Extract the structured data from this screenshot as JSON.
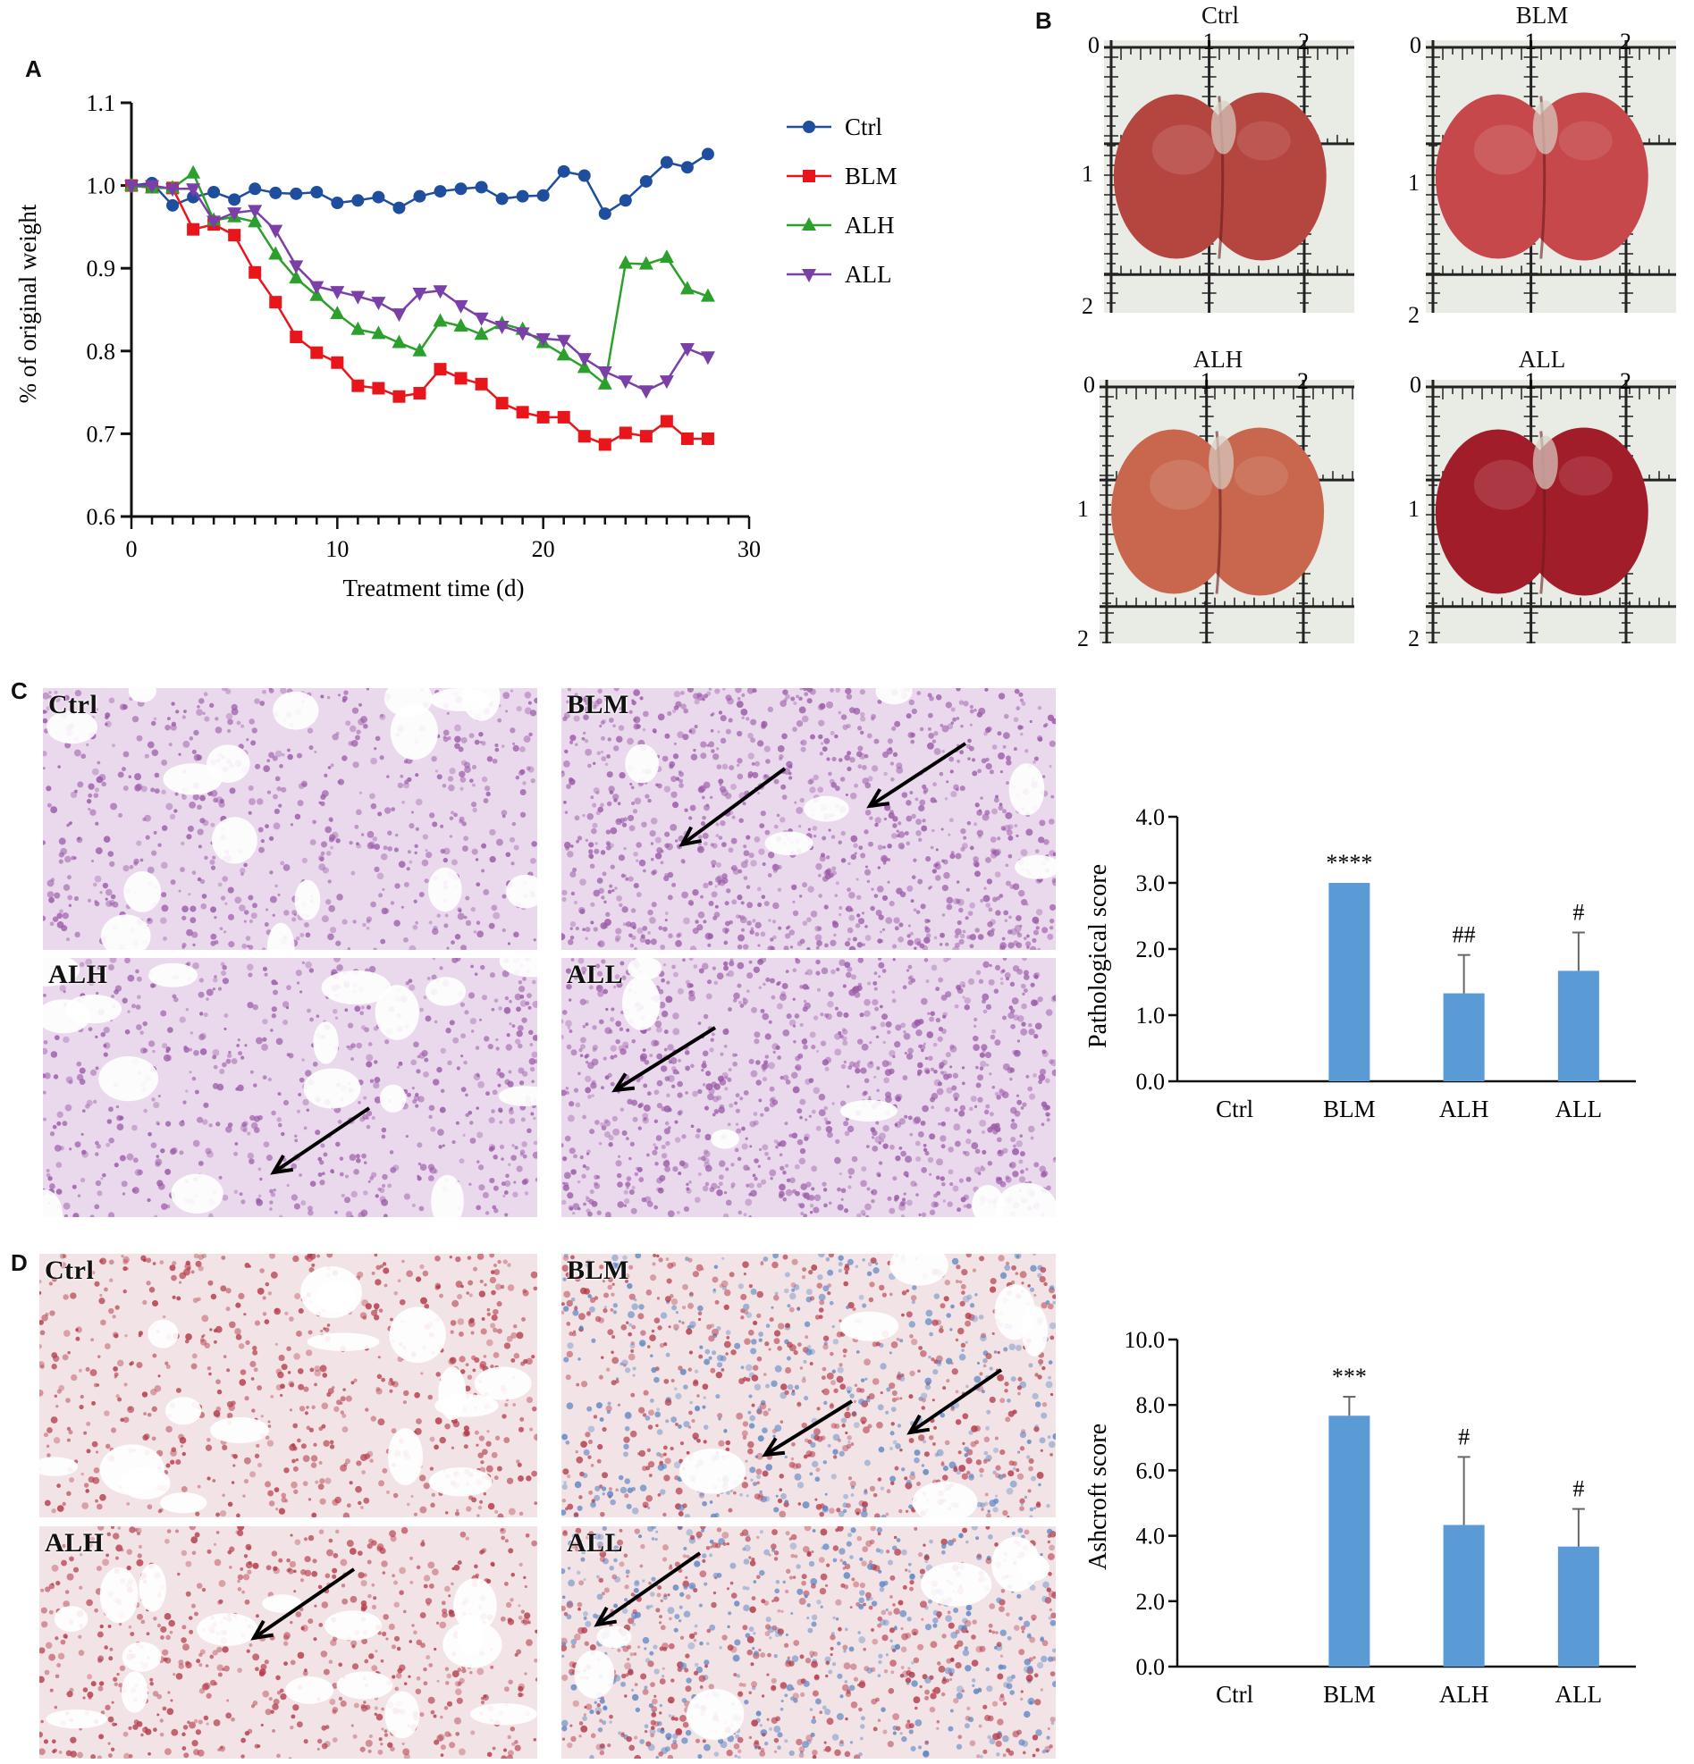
{
  "panels": {
    "a": "A",
    "b": "B",
    "c": "C",
    "d": "D"
  },
  "chart_data": [
    {
      "type": "line",
      "xlabel": "Treatment time (d)",
      "ylabel": "% of original weight",
      "xlim": [
        0,
        30
      ],
      "ylim": [
        0.6,
        1.1
      ],
      "xticks": [
        "0",
        "10",
        "20",
        "30"
      ],
      "yticks": [
        "0.6",
        "0.7",
        "0.8",
        "0.9",
        "1.0",
        "1.1"
      ],
      "legend_position": "right",
      "x": [
        0,
        1,
        2,
        3,
        4,
        5,
        6,
        7,
        8,
        9,
        10,
        11,
        12,
        13,
        14,
        15,
        16,
        17,
        18,
        19,
        20,
        21,
        22,
        23,
        24,
        25,
        26,
        27,
        28
      ],
      "series": [
        {
          "name": "Ctrl",
          "color": "#1f4e9e",
          "marker": "circle",
          "values": [
            1.0,
            1.003,
            0.976,
            0.986,
            0.992,
            0.983,
            0.996,
            0.991,
            0.99,
            0.992,
            0.979,
            0.982,
            0.986,
            0.973,
            0.987,
            0.993,
            0.996,
            0.998,
            0.984,
            0.987,
            0.988,
            1.017,
            1.012,
            0.966,
            0.982,
            1.005,
            1.028,
            1.022,
            1.038
          ]
        },
        {
          "name": "BLM",
          "color": "#e8161b",
          "marker": "square",
          "values": [
            1.0,
            0.998,
            0.997,
            0.947,
            0.953,
            0.94,
            0.895,
            0.859,
            0.817,
            0.798,
            0.786,
            0.758,
            0.755,
            0.745,
            0.749,
            0.778,
            0.767,
            0.76,
            0.737,
            0.726,
            0.72,
            0.72,
            0.697,
            0.687,
            0.701,
            0.697,
            0.715,
            0.694,
            0.694
          ]
        },
        {
          "name": "ALH",
          "color": "#2ca02c",
          "marker": "triangle-up",
          "values": [
            1.0,
            0.997,
            0.997,
            1.015,
            0.958,
            0.962,
            0.956,
            0.917,
            0.888,
            0.867,
            0.845,
            0.826,
            0.821,
            0.81,
            0.8,
            0.836,
            0.83,
            0.82,
            0.833,
            0.826,
            0.81,
            0.795,
            0.78,
            0.76,
            0.906,
            0.905,
            0.913,
            0.875,
            0.866
          ]
        },
        {
          "name": "ALL",
          "color": "#7b3fa8",
          "marker": "triangle-down",
          "values": [
            1.0,
            1.0,
            0.996,
            0.996,
            0.957,
            0.967,
            0.97,
            0.946,
            0.903,
            0.878,
            0.872,
            0.866,
            0.859,
            0.845,
            0.87,
            0.873,
            0.855,
            0.84,
            0.83,
            0.822,
            0.815,
            0.813,
            0.791,
            0.775,
            0.764,
            0.752,
            0.764,
            0.803,
            0.793
          ]
        }
      ]
    },
    {
      "type": "bar",
      "ylabel": "Pathological score",
      "ylim": [
        0,
        4
      ],
      "yticks": [
        "0.0",
        "1.0",
        "2.0",
        "3.0",
        "4.0"
      ],
      "categories": [
        "Ctrl",
        "BLM",
        "ALH",
        "ALL"
      ],
      "values": [
        0,
        3.0,
        1.33,
        1.67
      ],
      "errors": [
        0,
        0,
        0.58,
        0.58
      ],
      "annotations": [
        "",
        "****",
        "##",
        "#"
      ],
      "color": "#5b9bd5"
    },
    {
      "type": "bar",
      "ylabel": "Ashcroft score",
      "ylim": [
        0,
        10
      ],
      "yticks": [
        "0.0",
        "2.0",
        "4.0",
        "6.0",
        "8.0",
        "10.0"
      ],
      "categories": [
        "Ctrl",
        "BLM",
        "ALH",
        "ALL"
      ],
      "values": [
        0,
        7.67,
        4.33,
        3.67
      ],
      "errors": [
        0,
        0.58,
        2.08,
        1.15
      ],
      "annotations": [
        "",
        "***",
        "#",
        "#"
      ],
      "color": "#5b9bd5"
    }
  ],
  "lungs": [
    {
      "label": "Ctrl",
      "t0": "0",
      "t1": "1",
      "t2": "2",
      "l1": "1",
      "l2": "2",
      "color": "#b5453f"
    },
    {
      "label": "BLM",
      "t0": "0",
      "t1": "1",
      "t2": "2",
      "l1": "1",
      "l2": "2",
      "color": "#c6484b"
    },
    {
      "label": "ALH",
      "t0": "0",
      "t1": "1",
      "t2": "2",
      "l1": "1",
      "l2": "2",
      "color": "#c8674e"
    },
    {
      "label": "ALL",
      "t0": "0",
      "t1": "1",
      "t2": "2",
      "l1": "1",
      "l2": "2",
      "color": "#a11d2a"
    }
  ],
  "he_images": {
    "labels": [
      "Ctrl",
      "BLM",
      "ALH",
      "ALL"
    ],
    "bg": "#ead9ec",
    "stain": "#9a5aa8"
  },
  "masson_images": {
    "labels": [
      "Ctrl",
      "BLM",
      "ALH",
      "ALL"
    ],
    "bg": "#f2e4e6",
    "stain": "#b53a4a",
    "collagen": "#5f86c4"
  }
}
